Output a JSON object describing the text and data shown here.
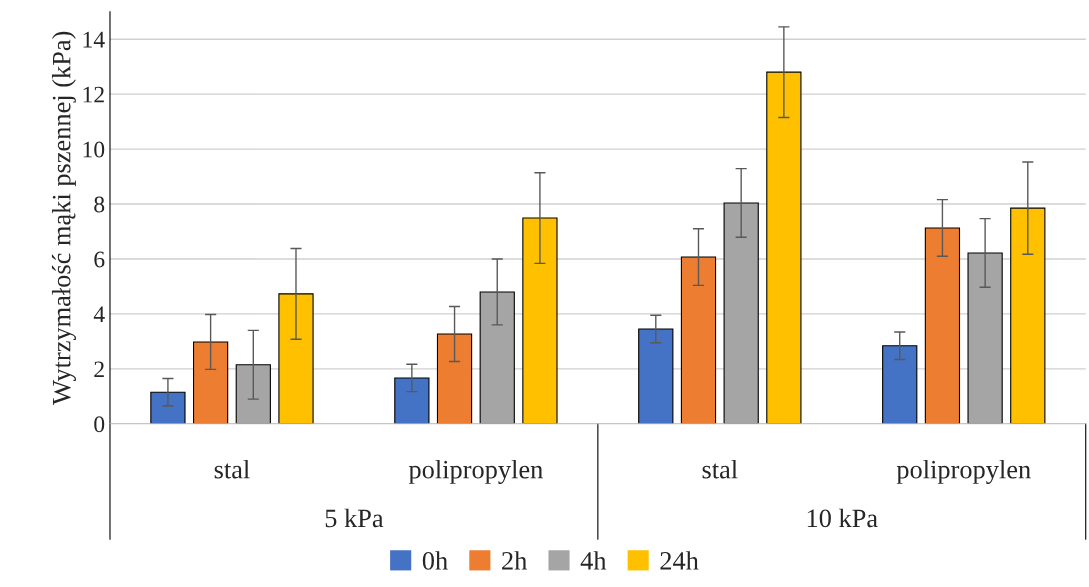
{
  "chart_data": {
    "type": "bar",
    "ylabel": "Wytrzymałość mąki pszennej (kPa)",
    "categories": [
      "stal",
      "polipropylen",
      "stal",
      "polipropylen"
    ],
    "series": [
      {
        "name": "0h",
        "color": "#4472c4",
        "values": [
          1.15,
          1.67,
          3.45,
          2.84
        ],
        "errors": [
          0.5,
          0.5,
          0.5,
          0.5
        ]
      },
      {
        "name": "2h",
        "color": "#ed7d31",
        "values": [
          2.98,
          3.27,
          6.07,
          7.13
        ],
        "errors": [
          1.0,
          1.0,
          1.03,
          1.03
        ]
      },
      {
        "name": "4h",
        "color": "#a5a5a5",
        "values": [
          2.15,
          4.8,
          8.04,
          6.22
        ],
        "errors": [
          1.25,
          1.2,
          1.25,
          1.25
        ]
      },
      {
        "name": "24h",
        "color": "#ffc000",
        "values": [
          4.73,
          7.49,
          12.8,
          7.85
        ],
        "errors": [
          1.65,
          1.65,
          1.65,
          1.68
        ]
      }
    ],
    "annotations": [
      "5 kPa",
      "10 kPa"
    ],
    "ylim": [
      0,
      15
    ],
    "yticks": [
      0,
      2,
      4,
      6,
      8,
      10,
      12,
      14
    ],
    "grid": "y",
    "legend": "bottom"
  }
}
